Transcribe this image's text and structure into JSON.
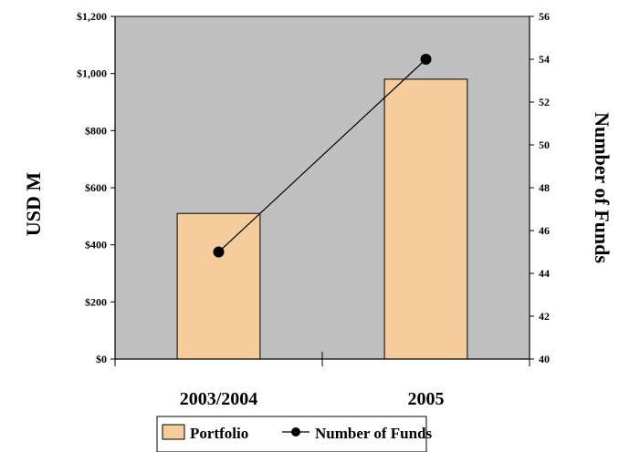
{
  "chart_data": {
    "type": "bar",
    "categories": [
      "2003/2004",
      "2005"
    ],
    "series": [
      {
        "name": "Portfolio",
        "type": "bar",
        "axis": "left",
        "values": [
          510,
          980
        ]
      },
      {
        "name": "Number of Funds",
        "type": "line",
        "axis": "right",
        "values": [
          45,
          54
        ]
      }
    ],
    "ylabel": "USD M",
    "y2label": "Number of Funds",
    "ylim": [
      0,
      1200
    ],
    "y2lim": [
      40,
      56
    ],
    "y_ticks": [
      "$0",
      "$200",
      "$400",
      "$600",
      "$800",
      "$1,000",
      "$1,200"
    ],
    "y2_ticks": [
      "40",
      "42",
      "44",
      "46",
      "48",
      "50",
      "52",
      "54",
      "56"
    ],
    "grid": false,
    "legend_position": "bottom",
    "colors": {
      "plot_background": "#c0c0c0",
      "bar_fill": "#f5cc9c",
      "bar_stroke": "#000000",
      "line": "#000000",
      "marker": "#000000"
    }
  }
}
